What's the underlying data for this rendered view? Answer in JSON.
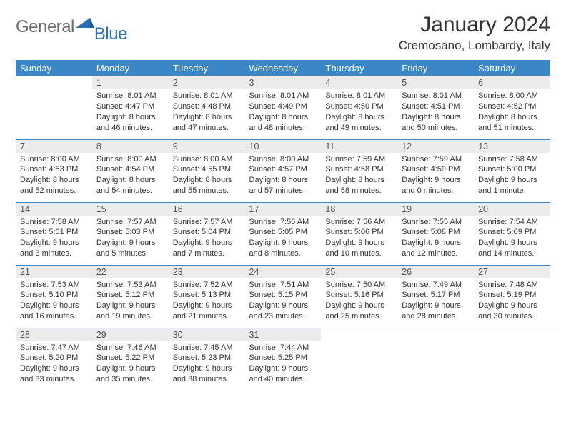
{
  "logo": {
    "word1": "General",
    "word2": "Blue"
  },
  "title": "January 2024",
  "location": "Cremosano, Lombardy, Italy",
  "colors": {
    "header_bg": "#3b86c6",
    "header_text": "#ffffff",
    "row_border": "#3b86c6",
    "daynum_bg": "#ececec",
    "body_text": "#333333",
    "logo_gray": "#6b6b6b",
    "logo_blue": "#2c6fb5"
  },
  "dayNames": [
    "Sunday",
    "Monday",
    "Tuesday",
    "Wednesday",
    "Thursday",
    "Friday",
    "Saturday"
  ],
  "weeks": [
    [
      {
        "n": "",
        "lines": []
      },
      {
        "n": "1",
        "lines": [
          "Sunrise: 8:01 AM",
          "Sunset: 4:47 PM",
          "Daylight: 8 hours",
          "and 46 minutes."
        ]
      },
      {
        "n": "2",
        "lines": [
          "Sunrise: 8:01 AM",
          "Sunset: 4:48 PM",
          "Daylight: 8 hours",
          "and 47 minutes."
        ]
      },
      {
        "n": "3",
        "lines": [
          "Sunrise: 8:01 AM",
          "Sunset: 4:49 PM",
          "Daylight: 8 hours",
          "and 48 minutes."
        ]
      },
      {
        "n": "4",
        "lines": [
          "Sunrise: 8:01 AM",
          "Sunset: 4:50 PM",
          "Daylight: 8 hours",
          "and 49 minutes."
        ]
      },
      {
        "n": "5",
        "lines": [
          "Sunrise: 8:01 AM",
          "Sunset: 4:51 PM",
          "Daylight: 8 hours",
          "and 50 minutes."
        ]
      },
      {
        "n": "6",
        "lines": [
          "Sunrise: 8:00 AM",
          "Sunset: 4:52 PM",
          "Daylight: 8 hours",
          "and 51 minutes."
        ]
      }
    ],
    [
      {
        "n": "7",
        "lines": [
          "Sunrise: 8:00 AM",
          "Sunset: 4:53 PM",
          "Daylight: 8 hours",
          "and 52 minutes."
        ]
      },
      {
        "n": "8",
        "lines": [
          "Sunrise: 8:00 AM",
          "Sunset: 4:54 PM",
          "Daylight: 8 hours",
          "and 54 minutes."
        ]
      },
      {
        "n": "9",
        "lines": [
          "Sunrise: 8:00 AM",
          "Sunset: 4:55 PM",
          "Daylight: 8 hours",
          "and 55 minutes."
        ]
      },
      {
        "n": "10",
        "lines": [
          "Sunrise: 8:00 AM",
          "Sunset: 4:57 PM",
          "Daylight: 8 hours",
          "and 57 minutes."
        ]
      },
      {
        "n": "11",
        "lines": [
          "Sunrise: 7:59 AM",
          "Sunset: 4:58 PM",
          "Daylight: 8 hours",
          "and 58 minutes."
        ]
      },
      {
        "n": "12",
        "lines": [
          "Sunrise: 7:59 AM",
          "Sunset: 4:59 PM",
          "Daylight: 9 hours",
          "and 0 minutes."
        ]
      },
      {
        "n": "13",
        "lines": [
          "Sunrise: 7:58 AM",
          "Sunset: 5:00 PM",
          "Daylight: 9 hours",
          "and 1 minute."
        ]
      }
    ],
    [
      {
        "n": "14",
        "lines": [
          "Sunrise: 7:58 AM",
          "Sunset: 5:01 PM",
          "Daylight: 9 hours",
          "and 3 minutes."
        ]
      },
      {
        "n": "15",
        "lines": [
          "Sunrise: 7:57 AM",
          "Sunset: 5:03 PM",
          "Daylight: 9 hours",
          "and 5 minutes."
        ]
      },
      {
        "n": "16",
        "lines": [
          "Sunrise: 7:57 AM",
          "Sunset: 5:04 PM",
          "Daylight: 9 hours",
          "and 7 minutes."
        ]
      },
      {
        "n": "17",
        "lines": [
          "Sunrise: 7:56 AM",
          "Sunset: 5:05 PM",
          "Daylight: 9 hours",
          "and 8 minutes."
        ]
      },
      {
        "n": "18",
        "lines": [
          "Sunrise: 7:56 AM",
          "Sunset: 5:06 PM",
          "Daylight: 9 hours",
          "and 10 minutes."
        ]
      },
      {
        "n": "19",
        "lines": [
          "Sunrise: 7:55 AM",
          "Sunset: 5:08 PM",
          "Daylight: 9 hours",
          "and 12 minutes."
        ]
      },
      {
        "n": "20",
        "lines": [
          "Sunrise: 7:54 AM",
          "Sunset: 5:09 PM",
          "Daylight: 9 hours",
          "and 14 minutes."
        ]
      }
    ],
    [
      {
        "n": "21",
        "lines": [
          "Sunrise: 7:53 AM",
          "Sunset: 5:10 PM",
          "Daylight: 9 hours",
          "and 16 minutes."
        ]
      },
      {
        "n": "22",
        "lines": [
          "Sunrise: 7:53 AM",
          "Sunset: 5:12 PM",
          "Daylight: 9 hours",
          "and 19 minutes."
        ]
      },
      {
        "n": "23",
        "lines": [
          "Sunrise: 7:52 AM",
          "Sunset: 5:13 PM",
          "Daylight: 9 hours",
          "and 21 minutes."
        ]
      },
      {
        "n": "24",
        "lines": [
          "Sunrise: 7:51 AM",
          "Sunset: 5:15 PM",
          "Daylight: 9 hours",
          "and 23 minutes."
        ]
      },
      {
        "n": "25",
        "lines": [
          "Sunrise: 7:50 AM",
          "Sunset: 5:16 PM",
          "Daylight: 9 hours",
          "and 25 minutes."
        ]
      },
      {
        "n": "26",
        "lines": [
          "Sunrise: 7:49 AM",
          "Sunset: 5:17 PM",
          "Daylight: 9 hours",
          "and 28 minutes."
        ]
      },
      {
        "n": "27",
        "lines": [
          "Sunrise: 7:48 AM",
          "Sunset: 5:19 PM",
          "Daylight: 9 hours",
          "and 30 minutes."
        ]
      }
    ],
    [
      {
        "n": "28",
        "lines": [
          "Sunrise: 7:47 AM",
          "Sunset: 5:20 PM",
          "Daylight: 9 hours",
          "and 33 minutes."
        ]
      },
      {
        "n": "29",
        "lines": [
          "Sunrise: 7:46 AM",
          "Sunset: 5:22 PM",
          "Daylight: 9 hours",
          "and 35 minutes."
        ]
      },
      {
        "n": "30",
        "lines": [
          "Sunrise: 7:45 AM",
          "Sunset: 5:23 PM",
          "Daylight: 9 hours",
          "and 38 minutes."
        ]
      },
      {
        "n": "31",
        "lines": [
          "Sunrise: 7:44 AM",
          "Sunset: 5:25 PM",
          "Daylight: 9 hours",
          "and 40 minutes."
        ]
      },
      {
        "n": "",
        "lines": []
      },
      {
        "n": "",
        "lines": []
      },
      {
        "n": "",
        "lines": []
      }
    ]
  ]
}
